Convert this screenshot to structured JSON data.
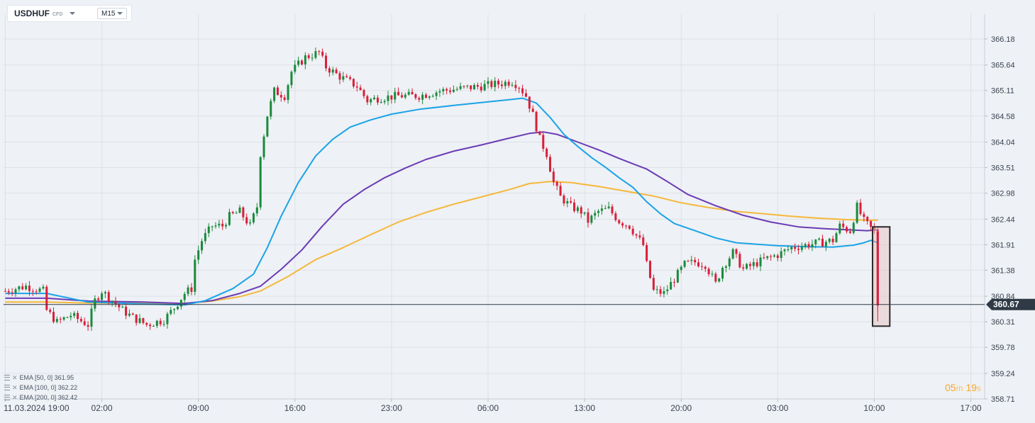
{
  "symbol": {
    "name": "USDHUF",
    "type": "CFD",
    "timeframe": "M15"
  },
  "countdown": {
    "minutes": "05",
    "minutes_unit": "m",
    "seconds": "19",
    "seconds_unit": "s"
  },
  "indicators": [
    {
      "label": "EMA [50,  0] 361.95",
      "color": "#1aa3e8"
    },
    {
      "label": "EMA [100,  0] 362.22",
      "color": "#6a3bb5"
    },
    {
      "label": "EMA [200,  0] 362.42",
      "color": "#f5b83a"
    }
  ],
  "current_price": {
    "label": "360.67",
    "value": 360.67
  },
  "chart_data": {
    "type": "candlestick",
    "instrument": "USDHUF",
    "timeframe": "M15",
    "ylim": [
      358.71,
      366.4
    ],
    "y_ticks": [
      "366.18",
      "365.64",
      "365.11",
      "364.58",
      "364.04",
      "363.51",
      "362.98",
      "362.44",
      "361.91",
      "361.38",
      "360.84",
      "360.31",
      "359.78",
      "359.24",
      "358.71"
    ],
    "x_ticks": [
      "11.03.2024  19:00",
      "02:00",
      "09:00",
      "16:00",
      "23:00",
      "06:00",
      "13:00",
      "20:00",
      "03:00",
      "10:00",
      "17:00"
    ],
    "x_tick_pos": [
      0,
      28,
      56,
      84,
      112,
      140,
      168,
      196,
      224,
      252,
      280
    ],
    "x_range": [
      -0.5,
      284
    ],
    "price_path": [
      [
        0,
        360.95
      ],
      [
        6,
        361.05
      ],
      [
        11,
        360.95
      ],
      [
        12,
        360.55
      ],
      [
        15,
        360.3
      ],
      [
        19,
        360.45
      ],
      [
        24,
        360.25
      ],
      [
        26,
        360.75
      ],
      [
        28,
        360.95
      ],
      [
        31,
        360.75
      ],
      [
        34,
        360.55
      ],
      [
        37,
        360.4
      ],
      [
        41,
        360.25
      ],
      [
        46,
        360.35
      ],
      [
        49,
        360.6
      ],
      [
        52,
        360.9
      ],
      [
        54,
        361.0
      ],
      [
        55,
        361.6
      ],
      [
        57,
        362.0
      ],
      [
        60,
        362.3
      ],
      [
        63,
        362.3
      ],
      [
        65,
        362.5
      ],
      [
        68,
        362.6
      ],
      [
        71,
        362.3
      ],
      [
        73,
        362.7
      ],
      [
        74,
        363.8
      ],
      [
        76,
        364.6
      ],
      [
        78,
        365.1
      ],
      [
        81,
        365.0
      ],
      [
        83,
        365.5
      ],
      [
        87,
        365.8
      ],
      [
        91,
        365.9
      ],
      [
        93,
        365.6
      ],
      [
        97,
        365.4
      ],
      [
        102,
        365.2
      ],
      [
        105,
        364.9
      ],
      [
        108,
        364.95
      ],
      [
        114,
        365.0
      ],
      [
        120,
        365.0
      ],
      [
        126,
        365.1
      ],
      [
        132,
        365.15
      ],
      [
        138,
        365.2
      ],
      [
        143,
        365.25
      ],
      [
        147,
        365.3
      ],
      [
        149,
        365.2
      ],
      [
        151,
        365.0
      ],
      [
        153,
        364.6
      ],
      [
        155,
        364.1
      ],
      [
        157,
        363.8
      ],
      [
        159,
        363.2
      ],
      [
        161,
        362.9
      ],
      [
        164,
        362.7
      ],
      [
        167,
        362.6
      ],
      [
        169,
        362.4
      ],
      [
        172,
        362.6
      ],
      [
        175,
        362.65
      ],
      [
        178,
        362.4
      ],
      [
        181,
        362.3
      ],
      [
        183,
        362.1
      ],
      [
        185,
        361.9
      ],
      [
        186,
        361.5
      ],
      [
        188,
        360.95
      ],
      [
        191,
        360.9
      ],
      [
        194,
        361.2
      ],
      [
        197,
        361.5
      ],
      [
        200,
        361.55
      ],
      [
        203,
        361.5
      ],
      [
        206,
        361.1
      ],
      [
        208,
        361.45
      ],
      [
        211,
        361.75
      ],
      [
        214,
        361.4
      ],
      [
        217,
        361.5
      ],
      [
        220,
        361.6
      ],
      [
        224,
        361.7
      ],
      [
        228,
        361.85
      ],
      [
        232,
        361.9
      ],
      [
        236,
        361.95
      ],
      [
        240,
        362.0
      ],
      [
        242,
        362.3
      ],
      [
        245,
        362.2
      ],
      [
        247,
        362.7
      ],
      [
        249,
        362.4
      ],
      [
        251,
        362.25
      ],
      [
        252,
        362.2
      ],
      [
        253,
        360.65
      ]
    ],
    "ema_50": [
      [
        0,
        360.9
      ],
      [
        12,
        360.9
      ],
      [
        24,
        360.72
      ],
      [
        40,
        360.68
      ],
      [
        52,
        360.66
      ],
      [
        58,
        360.75
      ],
      [
        66,
        361.0
      ],
      [
        72,
        361.3
      ],
      [
        76,
        361.85
      ],
      [
        80,
        362.5
      ],
      [
        85,
        363.2
      ],
      [
        90,
        363.75
      ],
      [
        95,
        364.1
      ],
      [
        100,
        364.35
      ],
      [
        106,
        364.5
      ],
      [
        112,
        364.62
      ],
      [
        120,
        364.72
      ],
      [
        130,
        364.8
      ],
      [
        138,
        364.86
      ],
      [
        146,
        364.92
      ],
      [
        150,
        364.95
      ],
      [
        154,
        364.85
      ],
      [
        158,
        364.55
      ],
      [
        162,
        364.2
      ],
      [
        166,
        363.95
      ],
      [
        170,
        363.72
      ],
      [
        174,
        363.52
      ],
      [
        178,
        363.3
      ],
      [
        182,
        363.1
      ],
      [
        186,
        362.8
      ],
      [
        190,
        362.55
      ],
      [
        194,
        362.35
      ],
      [
        200,
        362.2
      ],
      [
        206,
        362.05
      ],
      [
        212,
        361.95
      ],
      [
        218,
        361.92
      ],
      [
        224,
        361.89
      ],
      [
        232,
        361.87
      ],
      [
        240,
        361.86
      ],
      [
        246,
        361.9
      ],
      [
        249,
        361.95
      ],
      [
        251,
        362.0
      ],
      [
        253,
        361.95
      ]
    ],
    "ema_100": [
      [
        0,
        360.8
      ],
      [
        12,
        360.8
      ],
      [
        24,
        360.74
      ],
      [
        40,
        360.72
      ],
      [
        52,
        360.69
      ],
      [
        60,
        360.75
      ],
      [
        68,
        360.9
      ],
      [
        74,
        361.05
      ],
      [
        80,
        361.4
      ],
      [
        86,
        361.8
      ],
      [
        92,
        362.3
      ],
      [
        98,
        362.75
      ],
      [
        104,
        363.05
      ],
      [
        110,
        363.3
      ],
      [
        116,
        363.5
      ],
      [
        122,
        363.68
      ],
      [
        130,
        363.85
      ],
      [
        138,
        363.98
      ],
      [
        146,
        364.12
      ],
      [
        152,
        364.22
      ],
      [
        156,
        364.25
      ],
      [
        160,
        364.2
      ],
      [
        166,
        364.04
      ],
      [
        172,
        363.88
      ],
      [
        178,
        363.7
      ],
      [
        186,
        363.48
      ],
      [
        192,
        363.22
      ],
      [
        198,
        362.95
      ],
      [
        206,
        362.72
      ],
      [
        214,
        362.52
      ],
      [
        222,
        362.38
      ],
      [
        230,
        362.28
      ],
      [
        238,
        362.24
      ],
      [
        244,
        362.22
      ],
      [
        250,
        362.2
      ],
      [
        253,
        362.22
      ]
    ],
    "ema_200": [
      [
        0,
        360.72
      ],
      [
        12,
        360.72
      ],
      [
        24,
        360.7
      ],
      [
        40,
        360.7
      ],
      [
        52,
        360.69
      ],
      [
        60,
        360.74
      ],
      [
        68,
        360.83
      ],
      [
        74,
        360.95
      ],
      [
        82,
        361.25
      ],
      [
        90,
        361.6
      ],
      [
        98,
        361.85
      ],
      [
        106,
        362.12
      ],
      [
        114,
        362.38
      ],
      [
        122,
        362.58
      ],
      [
        130,
        362.75
      ],
      [
        138,
        362.9
      ],
      [
        146,
        363.05
      ],
      [
        152,
        363.18
      ],
      [
        158,
        363.22
      ],
      [
        164,
        363.2
      ],
      [
        172,
        363.12
      ],
      [
        180,
        363.02
      ],
      [
        188,
        362.92
      ],
      [
        196,
        362.78
      ],
      [
        204,
        362.68
      ],
      [
        212,
        362.6
      ],
      [
        220,
        362.55
      ],
      [
        228,
        362.5
      ],
      [
        236,
        362.46
      ],
      [
        244,
        362.43
      ],
      [
        250,
        362.42
      ],
      [
        253,
        362.42
      ]
    ],
    "highlight": {
      "x0": 251.5,
      "x1": 256.5,
      "y0": 360.22,
      "y1": 362.28
    }
  }
}
